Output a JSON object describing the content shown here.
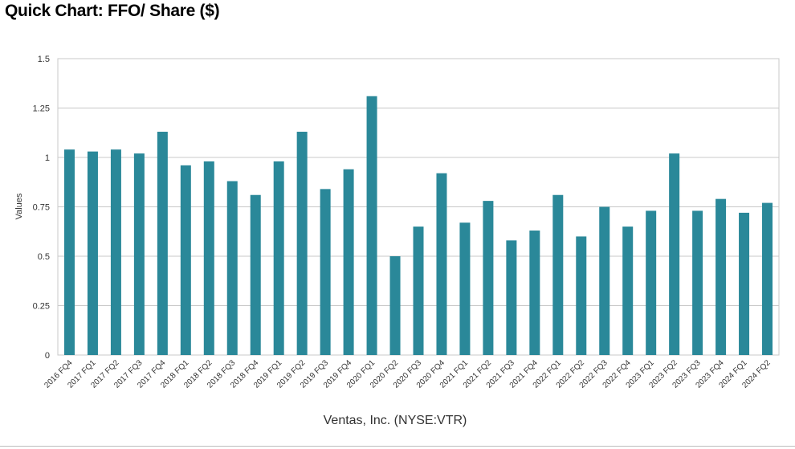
{
  "page_title": "Quick Chart: FFO/ Share ($)",
  "chart_data": {
    "type": "bar",
    "title": "Quick Chart: FFO/ Share ($)",
    "xlabel": "Ventas, Inc. (NYSE:VTR)",
    "ylabel": "Values",
    "ylim": [
      0,
      1.5
    ],
    "yticks": [
      0,
      0.25,
      0.5,
      0.75,
      1,
      1.25,
      1.5
    ],
    "ytick_labels": [
      "0",
      "0.25",
      "0.5",
      "0.75",
      "1",
      "1.25",
      "1.5"
    ],
    "grid": true,
    "bar_color": "#2a8899",
    "categories": [
      "2016 FQ4",
      "2017 FQ1",
      "2017 FQ2",
      "2017 FQ3",
      "2017 FQ4",
      "2018 FQ1",
      "2018 FQ2",
      "2018 FQ3",
      "2018 FQ4",
      "2019 FQ1",
      "2019 FQ2",
      "2019 FQ3",
      "2019 FQ4",
      "2020 FQ1",
      "2020 FQ2",
      "2020 FQ3",
      "2020 FQ4",
      "2021 FQ1",
      "2021 FQ2",
      "2021 FQ3",
      "2021 FQ4",
      "2022 FQ1",
      "2022 FQ2",
      "2022 FQ3",
      "2022 FQ4",
      "2023 FQ1",
      "2023 FQ2",
      "2023 FQ3",
      "2023 FQ4",
      "2024 FQ1",
      "2024 FQ2"
    ],
    "values": [
      1.04,
      1.03,
      1.04,
      1.02,
      1.13,
      0.96,
      0.98,
      0.88,
      0.81,
      0.98,
      1.13,
      0.84,
      0.94,
      1.31,
      0.5,
      0.65,
      0.92,
      0.67,
      0.78,
      0.58,
      0.63,
      0.81,
      0.6,
      0.75,
      0.65,
      0.73,
      1.02,
      0.73,
      0.79,
      0.72,
      0.77
    ]
  }
}
